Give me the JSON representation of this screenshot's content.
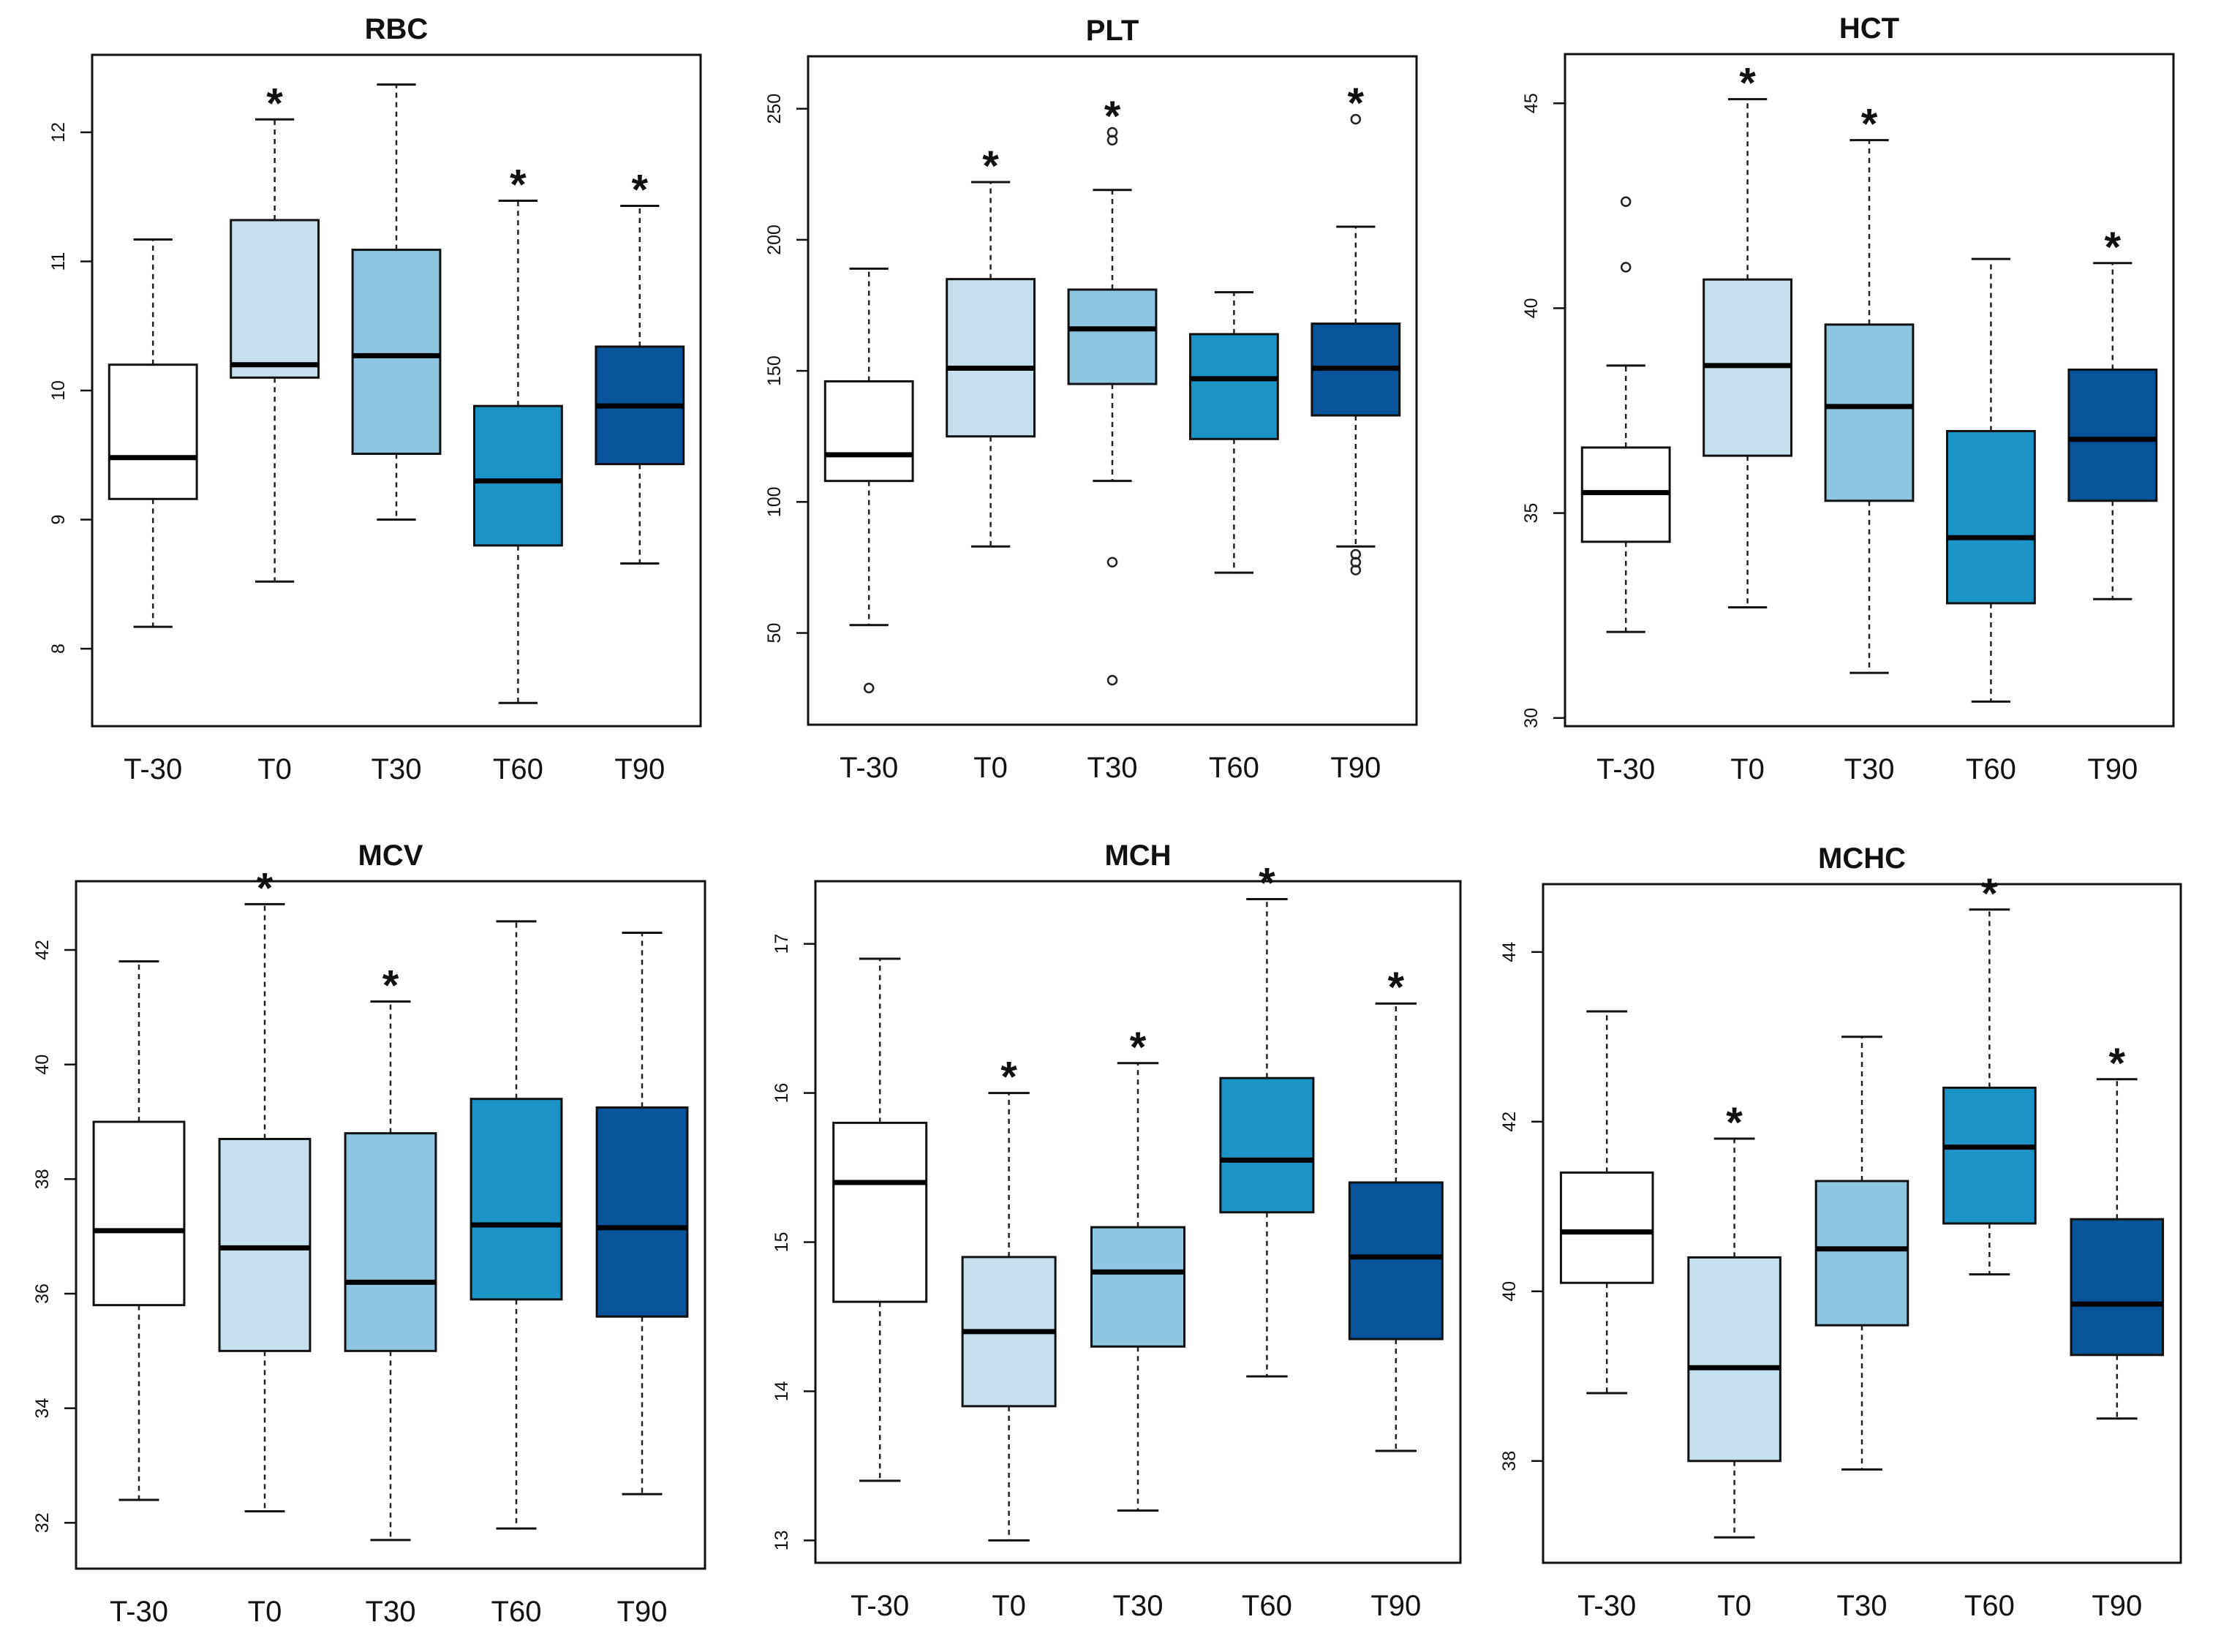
{
  "colors": {
    "T-30": "#ffffff",
    "T0": "#c6dfec",
    "T30": "#8ec5e0",
    "T60": "#1b93c6",
    "T90": "#08549b",
    "axis": "#111111"
  },
  "chart_data": [
    {
      "type": "boxplot",
      "title": "RBC",
      "categories": [
        "T-30",
        "T0",
        "T30",
        "T60",
        "T90"
      ],
      "ylim": [
        7.4,
        12.6
      ],
      "yticks": [
        8,
        9,
        10,
        11,
        12
      ],
      "boxes": [
        {
          "whisker_low": 8.17,
          "q1": 9.16,
          "median": 9.48,
          "q3": 10.2,
          "whisker_high": 11.17,
          "outliers": [],
          "significant": false
        },
        {
          "whisker_low": 8.52,
          "q1": 10.1,
          "median": 10.2,
          "q3": 11.32,
          "whisker_high": 12.1,
          "outliers": [],
          "significant": true
        },
        {
          "whisker_low": 9.0,
          "q1": 9.51,
          "median": 10.27,
          "q3": 11.09,
          "whisker_high": 12.37,
          "outliers": [],
          "significant": false
        },
        {
          "whisker_low": 7.58,
          "q1": 8.8,
          "median": 9.3,
          "q3": 9.88,
          "whisker_high": 11.47,
          "outliers": [],
          "significant": true
        },
        {
          "whisker_low": 8.66,
          "q1": 9.43,
          "median": 9.88,
          "q3": 10.34,
          "whisker_high": 11.43,
          "outliers": [],
          "significant": true
        }
      ]
    },
    {
      "type": "boxplot",
      "title": "PLT",
      "categories": [
        "T-30",
        "T0",
        "T30",
        "T60",
        "T90"
      ],
      "ylim": [
        15,
        270
      ],
      "yticks": [
        50,
        100,
        150,
        200,
        250
      ],
      "boxes": [
        {
          "whisker_low": 53,
          "q1": 108,
          "median": 118,
          "q3": 146,
          "whisker_high": 189,
          "outliers": [
            29
          ],
          "significant": false
        },
        {
          "whisker_low": 83,
          "q1": 125,
          "median": 151,
          "q3": 185,
          "whisker_high": 222,
          "outliers": [],
          "significant": true
        },
        {
          "whisker_low": 108,
          "q1": 145,
          "median": 166,
          "q3": 181,
          "whisker_high": 219,
          "outliers": [
            32,
            77,
            238,
            241
          ],
          "significant": true
        },
        {
          "whisker_low": 73,
          "q1": 124,
          "median": 147,
          "q3": 164,
          "whisker_high": 180,
          "outliers": [],
          "significant": false
        },
        {
          "whisker_low": 83,
          "q1": 133,
          "median": 151,
          "q3": 168,
          "whisker_high": 205,
          "outliers": [
            74,
            77,
            80,
            246
          ],
          "significant": true
        }
      ]
    },
    {
      "type": "boxplot",
      "title": "HCT",
      "categories": [
        "T-30",
        "T0",
        "T30",
        "T60",
        "T90"
      ],
      "ylim": [
        29.8,
        46.2
      ],
      "yticks": [
        30,
        35,
        40,
        45
      ],
      "boxes": [
        {
          "whisker_low": 32.1,
          "q1": 34.3,
          "median": 35.5,
          "q3": 36.6,
          "whisker_high": 38.6,
          "outliers": [
            41.0,
            42.6
          ],
          "significant": false
        },
        {
          "whisker_low": 32.7,
          "q1": 36.4,
          "median": 38.6,
          "q3": 40.7,
          "whisker_high": 45.1,
          "outliers": [],
          "significant": true
        },
        {
          "whisker_low": 31.1,
          "q1": 35.3,
          "median": 37.6,
          "q3": 39.6,
          "whisker_high": 44.1,
          "outliers": [],
          "significant": true
        },
        {
          "whisker_low": 30.4,
          "q1": 32.8,
          "median": 34.4,
          "q3": 37.0,
          "whisker_high": 41.2,
          "outliers": [],
          "significant": false
        },
        {
          "whisker_low": 32.9,
          "q1": 35.3,
          "median": 36.8,
          "q3": 38.5,
          "whisker_high": 41.1,
          "outliers": [],
          "significant": true
        }
      ]
    },
    {
      "type": "boxplot",
      "title": "MCV",
      "categories": [
        "T-30",
        "T0",
        "T30",
        "T60",
        "T90"
      ],
      "ylim": [
        31.2,
        43.2
      ],
      "yticks": [
        32,
        34,
        36,
        38,
        40,
        42
      ],
      "boxes": [
        {
          "whisker_low": 32.4,
          "q1": 35.8,
          "median": 37.1,
          "q3": 39.0,
          "whisker_high": 41.8,
          "outliers": [],
          "significant": false
        },
        {
          "whisker_low": 32.2,
          "q1": 35.0,
          "median": 36.8,
          "q3": 38.7,
          "whisker_high": 42.8,
          "outliers": [],
          "significant": true
        },
        {
          "whisker_low": 31.7,
          "q1": 35.0,
          "median": 36.2,
          "q3": 38.8,
          "whisker_high": 41.1,
          "outliers": [],
          "significant": true
        },
        {
          "whisker_low": 31.9,
          "q1": 35.9,
          "median": 37.2,
          "q3": 39.4,
          "whisker_high": 42.5,
          "outliers": [],
          "significant": false
        },
        {
          "whisker_low": 32.5,
          "q1": 35.6,
          "median": 37.15,
          "q3": 39.25,
          "whisker_high": 42.3,
          "outliers": [],
          "significant": false
        }
      ]
    },
    {
      "type": "boxplot",
      "title": "MCH",
      "categories": [
        "T-30",
        "T0",
        "T30",
        "T60",
        "T90"
      ],
      "ylim": [
        12.85,
        17.42
      ],
      "yticks": [
        13,
        14,
        15,
        16,
        17
      ],
      "boxes": [
        {
          "whisker_low": 13.4,
          "q1": 14.6,
          "median": 15.4,
          "q3": 15.8,
          "whisker_high": 16.9,
          "outliers": [],
          "significant": false
        },
        {
          "whisker_low": 13.0,
          "q1": 13.9,
          "median": 14.4,
          "q3": 14.9,
          "whisker_high": 16.0,
          "outliers": [],
          "significant": true
        },
        {
          "whisker_low": 13.2,
          "q1": 14.3,
          "median": 14.8,
          "q3": 15.1,
          "whisker_high": 16.2,
          "outliers": [],
          "significant": true
        },
        {
          "whisker_low": 14.1,
          "q1": 15.2,
          "median": 15.55,
          "q3": 16.1,
          "whisker_high": 17.3,
          "outliers": [],
          "significant": true
        },
        {
          "whisker_low": 13.6,
          "q1": 14.35,
          "median": 14.9,
          "q3": 15.4,
          "whisker_high": 16.6,
          "outliers": [],
          "significant": true
        }
      ]
    },
    {
      "type": "boxplot",
      "title": "MCHC",
      "categories": [
        "T-30",
        "T0",
        "T30",
        "T60",
        "T90"
      ],
      "ylim": [
        36.8,
        44.8
      ],
      "yticks": [
        38,
        40,
        42,
        44
      ],
      "boxes": [
        {
          "whisker_low": 38.8,
          "q1": 40.1,
          "median": 40.7,
          "q3": 41.4,
          "whisker_high": 43.3,
          "outliers": [],
          "significant": false
        },
        {
          "whisker_low": 37.1,
          "q1": 38.0,
          "median": 39.1,
          "q3": 40.4,
          "whisker_high": 41.8,
          "outliers": [],
          "significant": true
        },
        {
          "whisker_low": 37.9,
          "q1": 39.6,
          "median": 40.5,
          "q3": 41.3,
          "whisker_high": 43.0,
          "outliers": [],
          "significant": false
        },
        {
          "whisker_low": 40.2,
          "q1": 40.8,
          "median": 41.7,
          "q3": 42.4,
          "whisker_high": 44.5,
          "outliers": [],
          "significant": true
        },
        {
          "whisker_low": 38.5,
          "q1": 39.25,
          "median": 39.85,
          "q3": 40.85,
          "whisker_high": 42.5,
          "outliers": [],
          "significant": true
        }
      ]
    }
  ]
}
